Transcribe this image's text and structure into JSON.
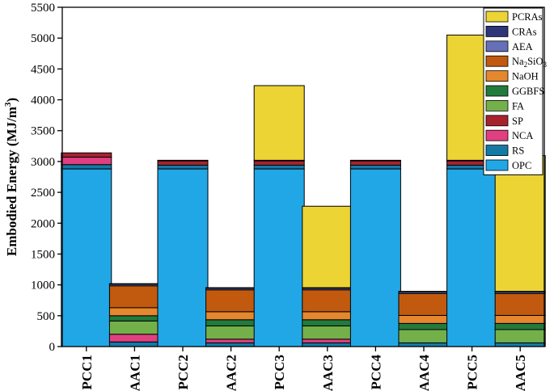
{
  "chart_data": {
    "type": "bar",
    "stacked": true,
    "title": "",
    "xlabel": "",
    "ylabel": "Embodied Energy (MJ/m³)",
    "ylabel_parts": {
      "main": "Embodied Energy (MJ/m",
      "sup": "3",
      "close": ")"
    },
    "ylim": [
      0,
      5500
    ],
    "yticks": [
      0,
      500,
      1000,
      1500,
      2000,
      2500,
      3000,
      3500,
      4000,
      4500,
      5000,
      5500
    ],
    "categories": [
      "PCC1",
      "AAC1",
      "PCC2",
      "AAC2",
      "PCC3",
      "AAC3",
      "PCC4",
      "AAC4",
      "PCC5",
      "AAC5"
    ],
    "legend_position": "top-right",
    "series": [
      {
        "name": "OPC",
        "color": "#22a7e6",
        "values": [
          2880,
          0,
          2880,
          0,
          2880,
          0,
          2880,
          0,
          2880,
          0
        ]
      },
      {
        "name": "RS",
        "color": "#137aa6",
        "values": [
          70,
          75,
          60,
          60,
          60,
          60,
          60,
          60,
          60,
          60
        ]
      },
      {
        "name": "NCA",
        "color": "#e0407f",
        "values": [
          120,
          125,
          0,
          60,
          0,
          60,
          0,
          0,
          0,
          0
        ]
      },
      {
        "name": "SP",
        "color": "#a8222e",
        "values": [
          70,
          0,
          70,
          0,
          70,
          0,
          70,
          0,
          70,
          0
        ]
      },
      {
        "name": "FA",
        "color": "#74b04a",
        "values": [
          0,
          215,
          0,
          215,
          0,
          215,
          0,
          215,
          0,
          215
        ]
      },
      {
        "name": "GGBFS",
        "color": "#227a3c",
        "values": [
          0,
          85,
          0,
          100,
          0,
          100,
          0,
          100,
          0,
          100
        ]
      },
      {
        "name": "NaOH",
        "color": "#e5872c",
        "values": [
          0,
          130,
          0,
          130,
          0,
          130,
          0,
          130,
          0,
          130
        ]
      },
      {
        "name": "Na₂SiO₃",
        "legend_main": "Na",
        "legend_sub1": "2",
        "legend_mid": "SiO",
        "legend_sub2": "3",
        "color": "#c15a0e",
        "values": [
          0,
          355,
          0,
          355,
          0,
          355,
          0,
          355,
          0,
          355
        ]
      },
      {
        "name": "AEA",
        "color": "#6670b8",
        "values": [
          0,
          25,
          0,
          25,
          0,
          25,
          0,
          25,
          0,
          25
        ]
      },
      {
        "name": "CRAs",
        "color": "#2e3578",
        "values": [
          0,
          10,
          10,
          10,
          10,
          10,
          10,
          10,
          10,
          10
        ]
      },
      {
        "name": "PCRAs",
        "color": "#ecd434",
        "values": [
          0,
          0,
          0,
          0,
          1210,
          1320,
          0,
          0,
          2030,
          2200
        ]
      }
    ]
  }
}
